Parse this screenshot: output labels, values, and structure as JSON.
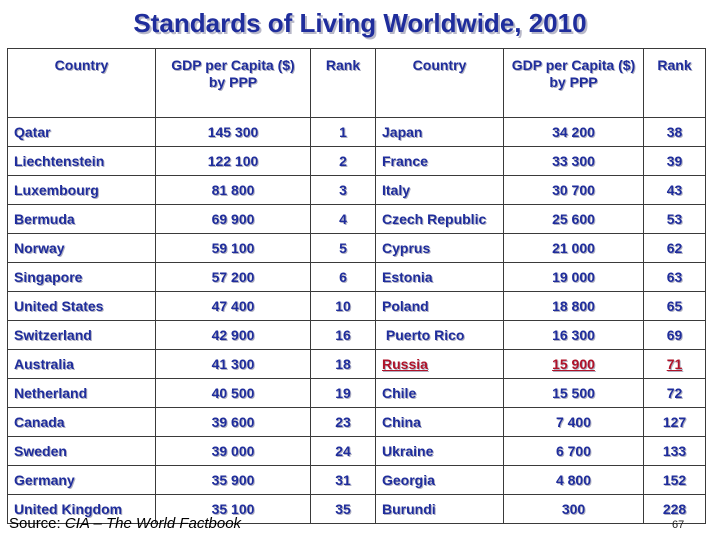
{
  "title": "Standards of Living Worldwide, 2010",
  "headers": {
    "country": "Country",
    "gdp": "GDP per Capita ($) by PPP",
    "rank": "Rank"
  },
  "rows": [
    {
      "c1": "Qatar",
      "g1": "145 300",
      "r1": "1",
      "c2": "Japan",
      "g2": "34 200",
      "r2": "38",
      "hl": false
    },
    {
      "c1": "Liechtenstein",
      "g1": "122 100",
      "r1": "2",
      "c2": "France",
      "g2": "33 300",
      "r2": "39",
      "hl": false
    },
    {
      "c1": "Luxembourg",
      "g1": "81 800",
      "r1": "3",
      "c2": "Italy",
      "g2": "30 700",
      "r2": "43",
      "hl": false
    },
    {
      "c1": "Bermuda",
      "g1": "69 900",
      "r1": "4",
      "c2": "Czech Republic",
      "g2": "25 600",
      "r2": "53",
      "hl": false
    },
    {
      "c1": "Norway",
      "g1": "59 100",
      "r1": "5",
      "c2": "Cyprus",
      "g2": "21 000",
      "r2": "62",
      "hl": false
    },
    {
      "c1": "Singapore",
      "g1": "57 200",
      "r1": "6",
      "c2": "Estonia",
      "g2": "19 000",
      "r2": "63",
      "hl": false
    },
    {
      "c1": "United States",
      "g1": "47 400",
      "r1": "10",
      "c2": "Poland",
      "g2": "18 800",
      "r2": "65",
      "hl": false
    },
    {
      "c1": "Switzerland",
      "g1": "42 900",
      "r1": "16",
      "c2": " Puerto Rico",
      "g2": "16 300",
      "r2": "69",
      "hl": false
    },
    {
      "c1": "Australia",
      "g1": "41 300",
      "r1": "18",
      "c2": "Russia",
      "g2": "15 900",
      "r2": "71",
      "hl": true
    },
    {
      "c1": "Netherland",
      "g1": "40 500",
      "r1": "19",
      "c2": "Chile",
      "g2": "15 500",
      "r2": "72",
      "hl": false
    },
    {
      "c1": "Canada",
      "g1": "39 600",
      "r1": "23",
      "c2": "China",
      "g2": "7 400",
      "r2": "127",
      "hl": false
    },
    {
      "c1": "Sweden",
      "g1": "39 000",
      "r1": "24",
      "c2": "Ukraine",
      "g2": "6 700",
      "r2": "133",
      "hl": false
    },
    {
      "c1": "Germany",
      "g1": "35 900",
      "r1": "31",
      "c2": "Georgia",
      "g2": "4 800",
      "r2": "152",
      "hl": false
    },
    {
      "c1": "United Kingdom",
      "g1": "35 100",
      "r1": "35",
      "c2": "Burundi",
      "g2": "300",
      "r2": "228",
      "hl": false
    }
  ],
  "source": {
    "prefix": "Source: ",
    "text": "CIA – The World Factbook"
  },
  "page_number": "67",
  "colors": {
    "text": "#1f2d9c",
    "highlight": "#b0132a"
  }
}
